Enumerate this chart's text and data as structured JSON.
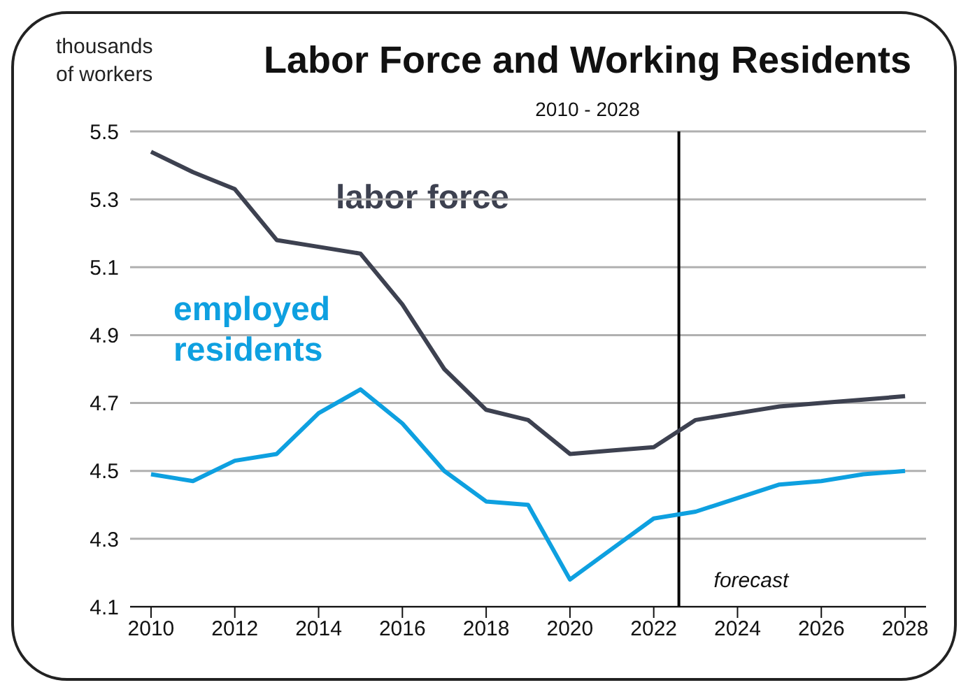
{
  "chart_data": {
    "type": "line",
    "title": "Labor Force and Working Residents",
    "subtitle": "2010 - 2028",
    "ylabel": "thousands of workers",
    "x": [
      2010,
      2011,
      2012,
      2013,
      2014,
      2015,
      2016,
      2017,
      2018,
      2019,
      2020,
      2021,
      2022,
      2023,
      2024,
      2025,
      2026,
      2027,
      2028
    ],
    "series": [
      {
        "name": "labor force",
        "color": "#3d4150",
        "values": [
          5.44,
          5.38,
          5.33,
          5.18,
          5.16,
          5.14,
          4.99,
          4.8,
          4.68,
          4.65,
          4.55,
          4.56,
          4.57,
          4.65,
          4.67,
          4.69,
          4.7,
          4.71,
          4.72
        ]
      },
      {
        "name": "employed residents",
        "color": "#0ea0e0",
        "values": [
          4.49,
          4.47,
          4.53,
          4.55,
          4.67,
          4.74,
          4.64,
          4.5,
          4.41,
          4.4,
          4.18,
          4.27,
          4.36,
          4.38,
          4.42,
          4.46,
          4.47,
          4.49,
          4.5
        ]
      }
    ],
    "xlim": [
      2009.5,
      2028.5
    ],
    "xticks": [
      2010,
      2012,
      2014,
      2016,
      2018,
      2020,
      2022,
      2024,
      2026,
      2028
    ],
    "ylim": [
      4.1,
      5.5
    ],
    "yticks": [
      4.1,
      4.3,
      4.5,
      4.7,
      4.9,
      5.1,
      5.3,
      5.5
    ],
    "grid": "y",
    "marker": "none",
    "line_style": "solid",
    "ref_lines": [
      {
        "axis": "x",
        "value": 2022.6,
        "label": "forecast",
        "color": "#000000"
      }
    ]
  }
}
